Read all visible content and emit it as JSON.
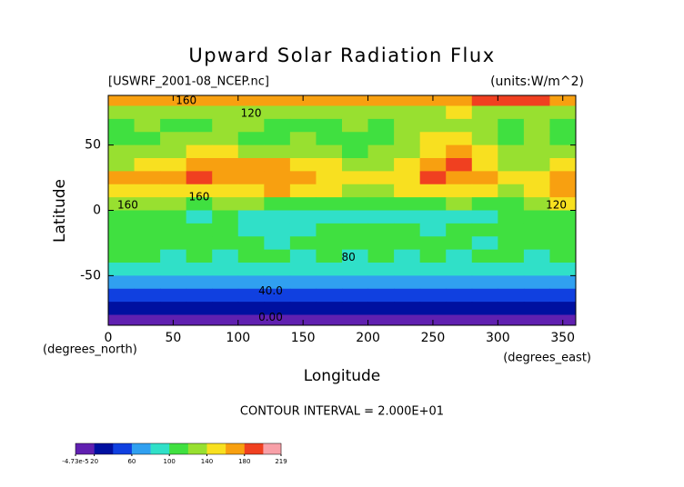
{
  "chart_data": {
    "type": "heatmap",
    "title": "Upward Solar Radiation Flux",
    "subtitle": "[USWRF_2001-08_NCEP.nc]",
    "units": "(units:W/m^2)",
    "x_label": "Longitude",
    "y_label": "Latitude",
    "x_unit": "(degrees_east)",
    "y_unit": "(degrees_north)",
    "footer": "CONTOUR INTERVAL = 2.000E+01",
    "xlim": [
      0,
      360
    ],
    "ylim": [
      -88,
      88
    ],
    "xticks": [
      0,
      50,
      100,
      150,
      200,
      250,
      300,
      350
    ],
    "yticks": [
      -50,
      0,
      50
    ],
    "level_step": 20,
    "colormap": [
      "#6020b0",
      "#0010a0",
      "#1040e0",
      "#30a0f0",
      "#30e0c8",
      "#40e040",
      "#98e030",
      "#f8e020",
      "#f8a010",
      "#f04020",
      "#f8a0a8"
    ],
    "colorbar_ticks": [
      {
        "value": 0,
        "label": "-4.73e-5"
      },
      20,
      60,
      100,
      140,
      180,
      219
    ],
    "grid": {
      "lon": [
        0,
        20,
        40,
        60,
        80,
        100,
        120,
        140,
        160,
        180,
        200,
        220,
        240,
        260,
        280,
        300,
        320,
        340
      ],
      "lat": [
        85,
        75,
        65,
        55,
        45,
        35,
        25,
        15,
        5,
        -5,
        -15,
        -25,
        -35,
        -45,
        -55,
        -65,
        -75,
        -85
      ],
      "values": [
        [
          165,
          170,
          165,
          170,
          170,
          165,
          170,
          165,
          170,
          170,
          165,
          170,
          170,
          175,
          190,
          195,
          185,
          170
        ],
        [
          125,
          130,
          120,
          125,
          130,
          125,
          120,
          125,
          130,
          125,
          130,
          125,
          135,
          140,
          125,
          135,
          130,
          125
        ],
        [
          115,
          120,
          115,
          110,
          125,
          120,
          115,
          110,
          115,
          120,
          115,
          120,
          125,
          130,
          120,
          115,
          120,
          115
        ],
        [
          110,
          115,
          120,
          130,
          125,
          115,
          110,
          120,
          115,
          110,
          115,
          120,
          145,
          150,
          125,
          110,
          120,
          115
        ],
        [
          120,
          125,
          130,
          145,
          150,
          130,
          125,
          130,
          120,
          115,
          120,
          125,
          155,
          165,
          145,
          120,
          125,
          120
        ],
        [
          135,
          140,
          150,
          165,
          170,
          165,
          160,
          150,
          140,
          130,
          135,
          140,
          170,
          180,
          150,
          130,
          135,
          140
        ],
        [
          160,
          165,
          170,
          180,
          175,
          170,
          175,
          165,
          150,
          140,
          145,
          150,
          185,
          175,
          160,
          145,
          155,
          175
        ],
        [
          150,
          155,
          145,
          150,
          155,
          150,
          160,
          150,
          140,
          130,
          135,
          140,
          150,
          150,
          145,
          135,
          145,
          170
        ],
        [
          120,
          125,
          120,
          115,
          125,
          120,
          115,
          110,
          115,
          110,
          105,
          110,
          115,
          120,
          110,
          115,
          130,
          150
        ],
        [
          100,
          105,
          100,
          95,
          100,
          95,
          90,
          95,
          90,
          85,
          85,
          80,
          85,
          90,
          95,
          100,
          105,
          110
        ],
        [
          110,
          115,
          110,
          105,
          100,
          90,
          85,
          95,
          100,
          105,
          105,
          100,
          95,
          100,
          110,
          105,
          110,
          110
        ],
        [
          105,
          110,
          105,
          100,
          105,
          100,
          95,
          100,
          105,
          100,
          105,
          110,
          105,
          100,
          95,
          100,
          105,
          105
        ],
        [
          100,
          100,
          95,
          100,
          95,
          100,
          100,
          95,
          100,
          95,
          100,
          95,
          100,
          95,
          100,
          100,
          95,
          100
        ],
        [
          95,
          90,
          95,
          90,
          95,
          90,
          90,
          95,
          90,
          95,
          90,
          95,
          90,
          90,
          95,
          90,
          95,
          90
        ],
        [
          70,
          72,
          70,
          75,
          70,
          72,
          70,
          68,
          72,
          70,
          72,
          70,
          70,
          72,
          75,
          70,
          72,
          70
        ],
        [
          50,
          50,
          52,
          50,
          48,
          50,
          52,
          50,
          50,
          48,
          50,
          52,
          50,
          50,
          48,
          52,
          50,
          50
        ],
        [
          30,
          30,
          30,
          28,
          30,
          30,
          32,
          30,
          30,
          30,
          28,
          30,
          30,
          30,
          30,
          28,
          30,
          30
        ],
        [
          10,
          10,
          10,
          10,
          10,
          10,
          10,
          10,
          10,
          10,
          10,
          10,
          10,
          10,
          10,
          10,
          10,
          10
        ]
      ]
    },
    "contour_labels": [
      {
        "lon": 60,
        "lat": 84,
        "text": "160"
      },
      {
        "lon": 110,
        "lat": 74,
        "text": "120"
      },
      {
        "lon": 70,
        "lat": 10,
        "text": "160"
      },
      {
        "lon": 15,
        "lat": 4,
        "text": "160"
      },
      {
        "lon": 345,
        "lat": 4,
        "text": "120"
      },
      {
        "lon": 185,
        "lat": -36,
        "text": "80"
      },
      {
        "lon": 125,
        "lat": -62,
        "text": "40.0"
      },
      {
        "lon": 125,
        "lat": -82,
        "text": "0.00"
      }
    ]
  }
}
